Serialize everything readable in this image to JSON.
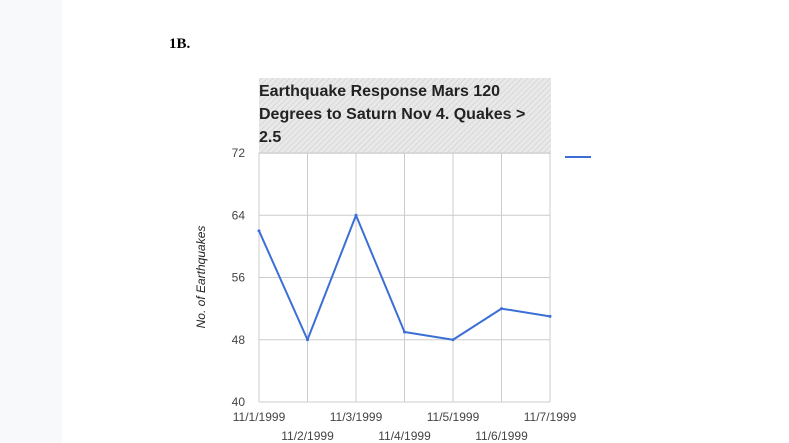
{
  "section": {
    "label": "1B."
  },
  "chart_data": {
    "type": "line",
    "title_lines": [
      "Earthquake Response Mars 120",
      "Degrees to Saturn Nov 4. Quakes >",
      "2.5"
    ],
    "xlabel": "",
    "ylabel": "No. of Earthquakes",
    "categories": [
      "11/1/1999",
      "11/2/1999",
      "11/3/1999",
      "11/4/1999",
      "11/5/1999",
      "11/6/1999",
      "11/7/1999"
    ],
    "series": [
      {
        "values": [
          62,
          48,
          64,
          49,
          48,
          52,
          51
        ],
        "color": "#3c6fd6"
      }
    ],
    "ylim": [
      40,
      72
    ],
    "yticks": [
      40,
      48,
      56,
      64,
      72
    ],
    "grid": true,
    "legend": "top-right"
  }
}
